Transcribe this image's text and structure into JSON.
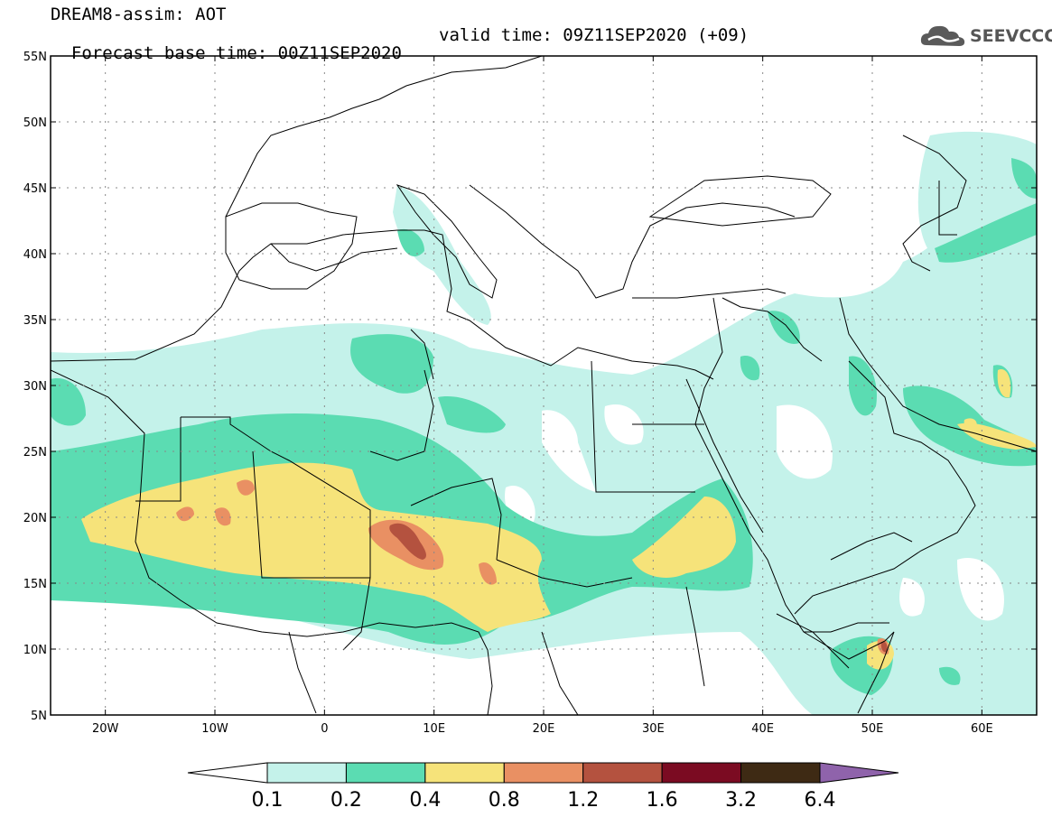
{
  "header": {
    "model_title": "DREAM8-assim: AOT",
    "base_time": "Forecast base time: 00Z11SEP2020",
    "valid_time": "valid time: 09Z11SEP2020 (+09)"
  },
  "logo": {
    "text": "SEEVCCC",
    "icon": "cloud-logo-icon"
  },
  "map": {
    "lon_range": [
      -25,
      65
    ],
    "lat_range": [
      5,
      55
    ],
    "lat_ticks": [
      {
        "value": 55,
        "label": "55N"
      },
      {
        "value": 50,
        "label": "50N"
      },
      {
        "value": 45,
        "label": "45N"
      },
      {
        "value": 40,
        "label": "40N"
      },
      {
        "value": 35,
        "label": "35N"
      },
      {
        "value": 30,
        "label": "30N"
      },
      {
        "value": 25,
        "label": "25N"
      },
      {
        "value": 20,
        "label": "20N"
      },
      {
        "value": 15,
        "label": "15N"
      },
      {
        "value": 10,
        "label": "10N"
      },
      {
        "value": 5,
        "label": "5N"
      }
    ],
    "lon_ticks": [
      {
        "value": -20,
        "label": "20W"
      },
      {
        "value": -10,
        "label": "10W"
      },
      {
        "value": 0,
        "label": "0"
      },
      {
        "value": 10,
        "label": "10E"
      },
      {
        "value": 20,
        "label": "20E"
      },
      {
        "value": 30,
        "label": "30E"
      },
      {
        "value": 40,
        "label": "40E"
      },
      {
        "value": 50,
        "label": "50E"
      },
      {
        "value": 60,
        "label": "60E"
      }
    ],
    "grid": "dotted"
  },
  "colorbar": {
    "labels": [
      "0.1",
      "0.2",
      "0.4",
      "0.8",
      "1.2",
      "1.6",
      "3.2",
      "6.4"
    ],
    "colors": [
      "#ffffff",
      "#c4f2ea",
      "#5bdcb2",
      "#f6e37a",
      "#e99063",
      "#b4523f",
      "#7b0b22",
      "#3e2a14",
      "#8f63ab"
    ]
  }
}
